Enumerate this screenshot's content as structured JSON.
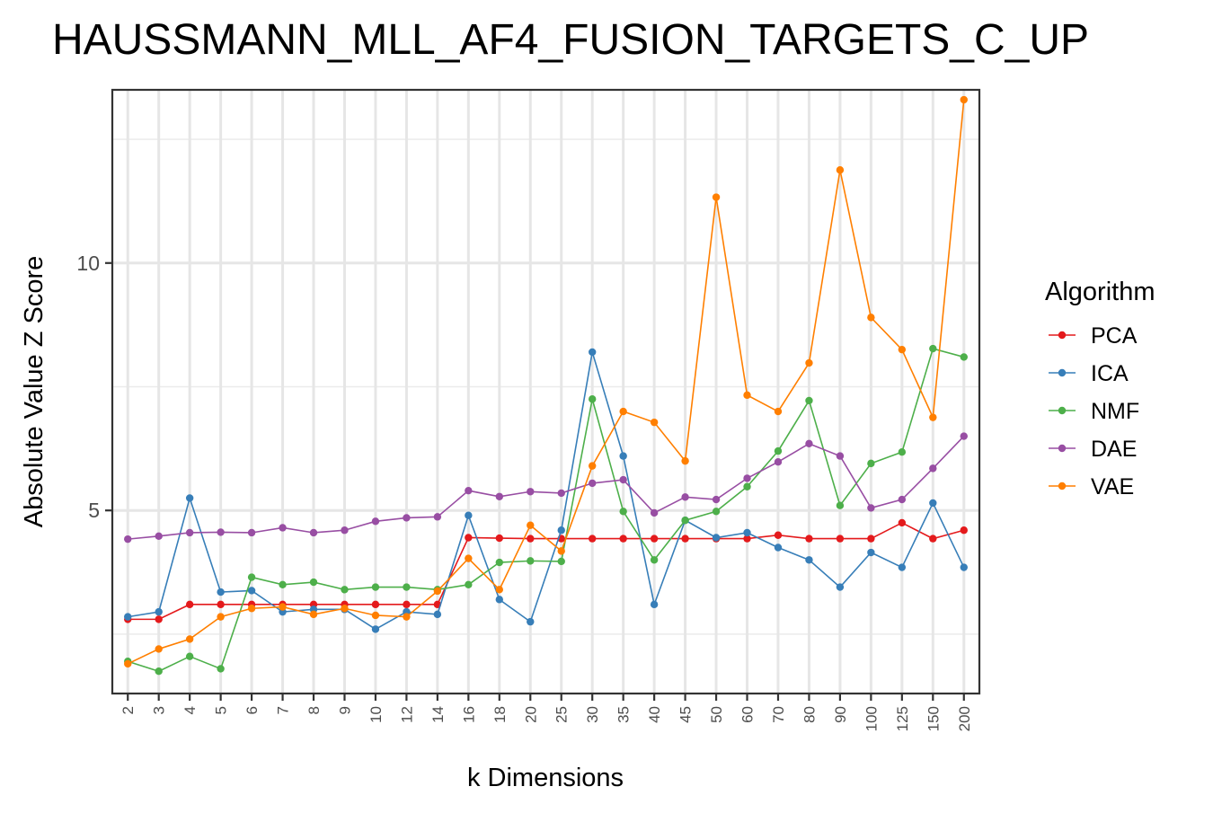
{
  "chart_data": {
    "type": "line",
    "title": "HAUSSMANN_MLL_AF4_FUSION_TARGETS_C_UP",
    "xlabel": "k Dimensions",
    "ylabel": "Absolute Value Z Score",
    "categories": [
      "2",
      "3",
      "4",
      "5",
      "6",
      "7",
      "8",
      "9",
      "10",
      "12",
      "14",
      "16",
      "18",
      "20",
      "25",
      "30",
      "35",
      "40",
      "45",
      "50",
      "60",
      "70",
      "80",
      "90",
      "100",
      "125",
      "150",
      "200"
    ],
    "ylim": [
      1.3,
      13.5
    ],
    "y_ticks": [
      5,
      10
    ],
    "y_tick_labels": [
      "5",
      "10"
    ],
    "grid": true,
    "legend": {
      "title": "Algorithm",
      "position": "right"
    },
    "series": [
      {
        "name": "PCA",
        "color": "#e41a1c",
        "values": [
          2.8,
          2.8,
          3.1,
          3.1,
          3.1,
          3.1,
          3.1,
          3.1,
          3.1,
          3.1,
          3.1,
          4.45,
          4.44,
          4.43,
          4.43,
          4.43,
          4.43,
          4.43,
          4.43,
          4.43,
          4.43,
          4.5,
          4.43,
          4.43,
          4.43,
          4.75,
          4.43,
          4.6
        ]
      },
      {
        "name": "ICA",
        "color": "#377eb8",
        "values": [
          2.85,
          2.95,
          5.25,
          3.35,
          3.38,
          2.95,
          3.0,
          3.0,
          2.6,
          2.95,
          2.9,
          4.9,
          3.2,
          2.75,
          4.6,
          8.2,
          6.1,
          3.1,
          4.8,
          4.45,
          4.55,
          4.25,
          4.0,
          3.45,
          4.15,
          3.85,
          5.15,
          3.85
        ]
      },
      {
        "name": "NMF",
        "color": "#4daf4a",
        "values": [
          1.95,
          1.75,
          2.05,
          1.8,
          3.65,
          3.5,
          3.55,
          3.4,
          3.45,
          3.45,
          3.4,
          3.5,
          3.95,
          3.98,
          3.97,
          7.25,
          4.98,
          4.0,
          4.8,
          4.98,
          5.48,
          6.2,
          7.22,
          5.1,
          5.95,
          6.18,
          8.27,
          8.1
        ]
      },
      {
        "name": "DAE",
        "color": "#984ea3",
        "values": [
          4.42,
          4.48,
          4.55,
          4.56,
          4.55,
          4.65,
          4.55,
          4.6,
          4.78,
          4.85,
          4.87,
          5.4,
          5.28,
          5.38,
          5.35,
          5.55,
          5.62,
          4.95,
          5.27,
          5.22,
          5.65,
          5.98,
          6.35,
          6.1,
          5.05,
          5.22,
          5.85,
          6.5
        ]
      },
      {
        "name": "VAE",
        "color": "#ff7f00",
        "values": [
          1.9,
          2.2,
          2.4,
          2.85,
          3.02,
          3.05,
          2.9,
          3.02,
          2.88,
          2.85,
          3.37,
          4.03,
          3.4,
          4.7,
          4.18,
          5.9,
          7.0,
          6.78,
          6.0,
          11.33,
          7.33,
          7.0,
          7.98,
          11.88,
          8.9,
          8.25,
          6.88,
          13.3
        ]
      }
    ]
  }
}
